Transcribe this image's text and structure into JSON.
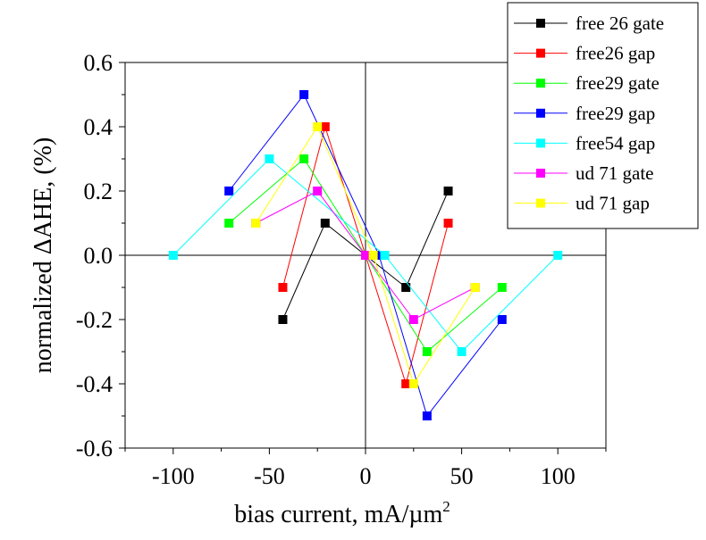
{
  "chart_data": {
    "type": "line",
    "xlabel": "bias current, mA/µm",
    "xlabel_sup": "2",
    "ylabel": "normalized ΔAHE, (%)",
    "xlim": [
      -125,
      125
    ],
    "ylim": [
      -0.6,
      0.6
    ],
    "xticks": [
      -100,
      -50,
      0,
      50,
      100
    ],
    "xtick_labels": [
      "-100",
      "-50",
      "0",
      "50",
      "100"
    ],
    "yticks": [
      -0.6,
      -0.4,
      -0.2,
      0.0,
      0.2,
      0.4,
      0.6
    ],
    "ytick_labels": [
      "-0.6",
      "-0.4",
      "-0.2",
      "0.0",
      "0.2",
      "0.4",
      "0.6"
    ],
    "zero_lines": true,
    "grid": false,
    "legend_position": "top-right",
    "series": [
      {
        "name": "free 26 gate",
        "color": "#000000",
        "points": [
          [
            -43,
            -0.2
          ],
          [
            -21,
            0.1
          ],
          [
            0,
            0
          ],
          [
            21,
            -0.1
          ],
          [
            43,
            0.2
          ]
        ]
      },
      {
        "name": "free26 gap",
        "color": "#ff0000",
        "points": [
          [
            -43,
            -0.1
          ],
          [
            -21,
            0.4
          ],
          [
            0,
            0
          ],
          [
            21,
            -0.4
          ],
          [
            43,
            0.1
          ]
        ]
      },
      {
        "name": "free29 gate",
        "color": "#00ff00",
        "points": [
          [
            -71,
            0.1
          ],
          [
            -32,
            0.3
          ],
          [
            0,
            0
          ],
          [
            32,
            -0.3
          ],
          [
            71,
            -0.1
          ]
        ]
      },
      {
        "name": "free29 gap",
        "color": "#0000ff",
        "points": [
          [
            -71,
            0.2
          ],
          [
            -32,
            0.5
          ],
          [
            7,
            0
          ],
          [
            32,
            -0.5
          ],
          [
            71,
            -0.2
          ]
        ]
      },
      {
        "name": "free54 gap",
        "color": "#00ffff",
        "points": [
          [
            -100,
            0
          ],
          [
            -50,
            0.3
          ],
          [
            10,
            0
          ],
          [
            50,
            -0.3
          ],
          [
            100,
            0
          ]
        ]
      },
      {
        "name": "ud 71 gate",
        "color": "#ff00ff",
        "points": [
          [
            -57,
            0.1
          ],
          [
            -25,
            0.2
          ],
          [
            0,
            0
          ],
          [
            25,
            -0.2
          ],
          [
            57,
            -0.1
          ]
        ]
      },
      {
        "name": "ud 71 gap",
        "color": "#ffff00",
        "points": [
          [
            -57,
            0.1
          ],
          [
            -25,
            0.4
          ],
          [
            4,
            0
          ],
          [
            25,
            -0.4
          ],
          [
            57,
            -0.1
          ]
        ]
      }
    ]
  }
}
